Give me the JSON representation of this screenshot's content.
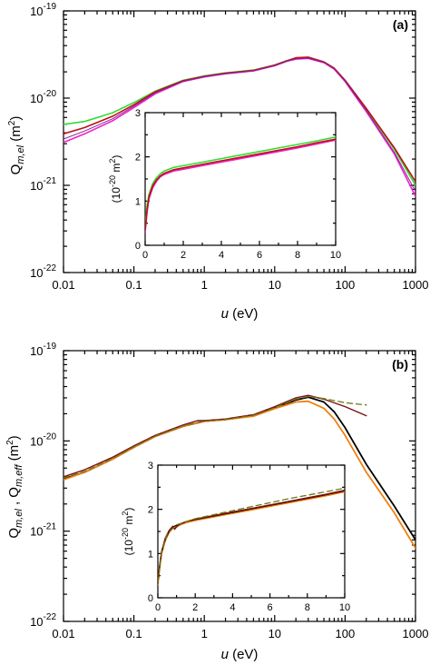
{
  "colors": {
    "green": "#33dd33",
    "magenta": "#ee22cc",
    "red": "#bb1111",
    "purple": "#882299",
    "black": "#000000",
    "orange": "#f08010",
    "darkred": "#7a1010",
    "olive": "#6a7a1a"
  },
  "chart_data": [
    {
      "type": "line",
      "panel_label": "(a)",
      "xscale": "log",
      "yscale": "log",
      "xlim": [
        0.01,
        1000
      ],
      "ylim": [
        1e-22,
        1e-19
      ],
      "xlabel_main": "u",
      "xlabel_unit": " (eV)",
      "ylabel_q": "Q",
      "ylabel_sub": "m,el",
      "ylabel_unit": " (m",
      "ylabel_sup": "2",
      "ylabel_close": ")",
      "xticks": [
        "0.01",
        "0.1",
        "1",
        "10",
        "100",
        "1000"
      ],
      "yticks": [
        {
          "base": "10",
          "exp": "-22"
        },
        {
          "base": "10",
          "exp": "-21"
        },
        {
          "base": "10",
          "exp": "-20"
        },
        {
          "base": "10",
          "exp": "-19"
        }
      ],
      "series": [
        {
          "color": "green",
          "width": 1.6,
          "x": [
            0.01,
            0.02,
            0.05,
            0.1,
            0.2,
            0.5,
            1,
            2,
            5,
            10,
            15,
            20,
            30,
            50,
            70,
            100,
            200,
            500,
            1000
          ],
          "y": [
            5e-21,
            5.4e-21,
            6.8e-21,
            8.9e-21,
            1.2e-20,
            1.6e-20,
            1.8e-20,
            1.95e-20,
            2.1e-20,
            2.4e-20,
            2.7e-20,
            2.85e-20,
            2.9e-20,
            2.6e-20,
            2.2e-20,
            1.6e-20,
            7.5e-21,
            2.6e-21,
            1e-21
          ]
        },
        {
          "color": "magenta",
          "width": 1.6,
          "x": [
            0.01,
            0.02,
            0.05,
            0.1,
            0.2,
            0.5,
            1,
            2,
            5,
            10,
            15,
            20,
            30,
            50,
            70,
            100,
            200,
            500,
            1000
          ],
          "y": [
            3.1e-21,
            3.9e-21,
            5.5e-21,
            7.8e-21,
            1.12e-20,
            1.55e-20,
            1.75e-20,
            1.9e-20,
            2.05e-20,
            2.35e-20,
            2.65e-20,
            2.8e-20,
            2.85e-20,
            2.55e-20,
            2.15e-20,
            1.55e-20,
            7e-21,
            2.3e-21,
            7.5e-22
          ]
        },
        {
          "color": "red",
          "width": 1.6,
          "x": [
            0.01,
            0.02,
            0.05,
            0.1,
            0.2,
            0.5,
            1,
            2,
            5,
            10,
            15,
            20,
            30,
            50,
            70,
            100,
            200,
            500,
            1000
          ],
          "y": [
            3.9e-21,
            4.6e-21,
            6.2e-21,
            8.4e-21,
            1.18e-20,
            1.58e-20,
            1.78e-20,
            1.93e-20,
            2.08e-20,
            2.38e-20,
            2.68e-20,
            2.9e-20,
            2.95e-20,
            2.6e-20,
            2.2e-20,
            1.6e-20,
            7.6e-21,
            2.7e-21,
            1.1e-21
          ]
        },
        {
          "color": "purple",
          "width": 1.0,
          "x": [
            0.01,
            0.02,
            0.05,
            0.1,
            0.2,
            0.5,
            1,
            2,
            5,
            10,
            15,
            20,
            30,
            50,
            70,
            100,
            200,
            500,
            1000
          ],
          "y": [
            3.4e-21,
            4.2e-21,
            5.8e-21,
            8.1e-21,
            1.15e-20,
            1.56e-20,
            1.76e-20,
            1.91e-20,
            2.06e-20,
            2.36e-20,
            2.66e-20,
            2.82e-20,
            2.87e-20,
            2.57e-20,
            2.17e-20,
            1.57e-20,
            7.2e-21,
            2.4e-21,
            8.5e-22
          ]
        }
      ],
      "inset": {
        "xlim": [
          0,
          10
        ],
        "ylim": [
          0,
          3
        ],
        "xticks": [
          "0",
          "2",
          "4",
          "6",
          "8",
          "10"
        ],
        "yticks": [
          "0",
          "1",
          "2",
          "3"
        ],
        "ylabel_open": "(10",
        "ylabel_sup": "-20",
        "ylabel_m": " m",
        "ylabel_sup2": "2",
        "ylabel_close": ")",
        "series": [
          {
            "color": "green",
            "width": 1.6,
            "x": [
              0,
              0.1,
              0.2,
              0.4,
              0.6,
              0.8,
              1,
              1.5,
              2,
              3,
              4,
              5,
              6,
              7,
              8,
              9,
              10
            ],
            "y": [
              0.45,
              0.9,
              1.15,
              1.4,
              1.53,
              1.62,
              1.68,
              1.76,
              1.8,
              1.88,
              1.96,
              2.04,
              2.12,
              2.2,
              2.28,
              2.36,
              2.45
            ]
          },
          {
            "color": "magenta",
            "width": 1.6,
            "x": [
              0,
              0.1,
              0.2,
              0.4,
              0.6,
              0.8,
              1,
              1.5,
              2,
              3,
              4,
              5,
              6,
              7,
              8,
              9,
              10
            ],
            "y": [
              0.3,
              0.75,
              1.05,
              1.3,
              1.45,
              1.55,
              1.6,
              1.68,
              1.72,
              1.8,
              1.88,
              1.96,
              2.04,
              2.12,
              2.2,
              2.29,
              2.38
            ]
          },
          {
            "color": "red",
            "width": 1.6,
            "x": [
              0,
              0.1,
              0.2,
              0.4,
              0.6,
              0.8,
              1,
              1.5,
              2,
              3,
              4,
              5,
              6,
              7,
              8,
              9,
              10
            ],
            "y": [
              0.35,
              0.8,
              1.1,
              1.35,
              1.48,
              1.57,
              1.63,
              1.71,
              1.75,
              1.83,
              1.91,
              1.99,
              2.07,
              2.15,
              2.23,
              2.32,
              2.4
            ]
          }
        ]
      }
    },
    {
      "type": "line",
      "panel_label": "(b)",
      "xscale": "log",
      "yscale": "log",
      "xlim": [
        0.01,
        1000
      ],
      "ylim": [
        1e-22,
        1e-19
      ],
      "xlabel_main": "u",
      "xlabel_unit": " (eV)",
      "ylabel_q": "Q",
      "ylabel_sub": "m,el",
      "ylabel_sep": " , ",
      "ylabel_q2": "Q",
      "ylabel_sub2": "m,eff",
      "ylabel_unit": " (m",
      "ylabel_sup": "2",
      "ylabel_close": ")",
      "xticks": [
        "0.01",
        "0.1",
        "1",
        "10",
        "100",
        "1000"
      ],
      "yticks": [
        {
          "base": "10",
          "exp": "-22"
        },
        {
          "base": "10",
          "exp": "-21"
        },
        {
          "base": "10",
          "exp": "-20"
        },
        {
          "base": "10",
          "exp": "-19"
        }
      ],
      "series": [
        {
          "color": "black",
          "width": 1.8,
          "x": [
            0.01,
            0.02,
            0.05,
            0.1,
            0.2,
            0.5,
            1,
            2,
            5,
            10,
            20,
            30,
            50,
            70,
            100,
            200,
            500,
            1000
          ],
          "y": [
            3.8e-21,
            4.5e-21,
            6.3e-21,
            8.5e-21,
            1.12e-20,
            1.45e-20,
            1.65e-20,
            1.72e-20,
            1.9e-20,
            2.3e-20,
            2.85e-20,
            3.05e-20,
            2.7e-20,
            2.1e-20,
            1.4e-20,
            5.5e-21,
            1.9e-21,
            8e-22
          ]
        },
        {
          "color": "orange",
          "width": 1.8,
          "x": [
            0.01,
            0.02,
            0.05,
            0.1,
            0.2,
            0.5,
            1,
            2,
            5,
            10,
            20,
            30,
            50,
            70,
            100,
            200,
            500,
            1000
          ],
          "y": [
            3.7e-21,
            4.5e-21,
            6.3e-21,
            8.5e-21,
            1.12e-20,
            1.45e-20,
            1.65e-20,
            1.72e-20,
            1.88e-20,
            2.28e-20,
            2.7e-20,
            2.75e-20,
            2.3e-20,
            1.75e-20,
            1.15e-20,
            4.5e-21,
            1.6e-21,
            6.5e-22
          ]
        },
        {
          "color": "darkred",
          "width": 1.4,
          "x": [
            0.01,
            0.02,
            0.05,
            0.1,
            0.2,
            0.5,
            0.8,
            1,
            2,
            5,
            10,
            20,
            30,
            50,
            100,
            200
          ],
          "y": [
            4e-21,
            4.8e-21,
            6.6e-21,
            8.8e-21,
            1.15e-20,
            1.5e-20,
            1.68e-20,
            1.68e-20,
            1.75e-20,
            1.95e-20,
            2.4e-20,
            3e-20,
            3.2e-20,
            2.9e-20,
            2.4e-20,
            1.9e-20
          ]
        },
        {
          "color": "olive",
          "width": 1.3,
          "dashed": true,
          "x": [
            0.01,
            0.02,
            0.05,
            0.1,
            0.2,
            0.5,
            1,
            2,
            5,
            10,
            20,
            30,
            50,
            100,
            200
          ],
          "y": [
            3.9e-21,
            4.6e-21,
            6.4e-21,
            8.6e-21,
            1.13e-20,
            1.47e-20,
            1.66e-20,
            1.73e-20,
            1.92e-20,
            2.33e-20,
            2.9e-20,
            3.1e-20,
            2.95e-20,
            2.65e-20,
            2.5e-20
          ]
        }
      ],
      "inset": {
        "xlim": [
          0,
          10
        ],
        "ylim": [
          0,
          3
        ],
        "xticks": [
          "0",
          "2",
          "4",
          "6",
          "8",
          "10"
        ],
        "yticks": [
          "0",
          "1",
          "2",
          "3"
        ],
        "ylabel_open": "(10",
        "ylabel_sup": "-20",
        "ylabel_m": " m",
        "ylabel_sup2": "2",
        "ylabel_close": ")",
        "series": [
          {
            "color": "orange",
            "width": 1.8,
            "x": [
              0,
              0.1,
              0.2,
              0.4,
              0.6,
              0.8,
              1,
              1.5,
              2,
              3,
              4,
              5,
              6,
              7,
              8,
              9,
              10
            ],
            "y": [
              0.3,
              0.7,
              1.0,
              1.3,
              1.48,
              1.58,
              1.62,
              1.7,
              1.75,
              1.83,
              1.91,
              1.99,
              2.07,
              2.15,
              2.23,
              2.31,
              2.4
            ]
          },
          {
            "color": "black",
            "width": 1.2,
            "x": [
              0,
              0.1,
              0.2,
              0.4,
              0.6,
              0.8,
              1,
              1.5,
              2,
              3,
              4,
              5,
              6,
              7,
              8,
              9,
              10
            ],
            "y": [
              0.32,
              0.72,
              1.02,
              1.32,
              1.5,
              1.6,
              1.64,
              1.72,
              1.77,
              1.85,
              1.93,
              2.01,
              2.09,
              2.17,
              2.25,
              2.33,
              2.42
            ]
          },
          {
            "color": "darkred",
            "width": 1.4,
            "x": [
              0,
              0.1,
              0.2,
              0.4,
              0.6,
              0.8,
              0.9,
              1,
              1.2,
              1.5,
              2,
              3,
              4,
              5,
              6,
              7,
              8,
              9,
              10
            ],
            "y": [
              0.35,
              0.75,
              1.05,
              1.35,
              1.52,
              1.62,
              1.55,
              1.6,
              1.67,
              1.72,
              1.78,
              1.86,
              1.94,
              2.02,
              2.1,
              2.18,
              2.26,
              2.34,
              2.43
            ]
          },
          {
            "color": "olive",
            "width": 1.3,
            "dashed": true,
            "x": [
              0,
              0.2,
              0.5,
              1,
              2,
              3,
              4,
              5,
              6,
              7,
              8,
              9,
              10
            ],
            "y": [
              0.33,
              1.03,
              1.45,
              1.65,
              1.79,
              1.88,
              1.97,
              2.06,
              2.15,
              2.24,
              2.32,
              2.4,
              2.48
            ]
          }
        ]
      }
    }
  ]
}
